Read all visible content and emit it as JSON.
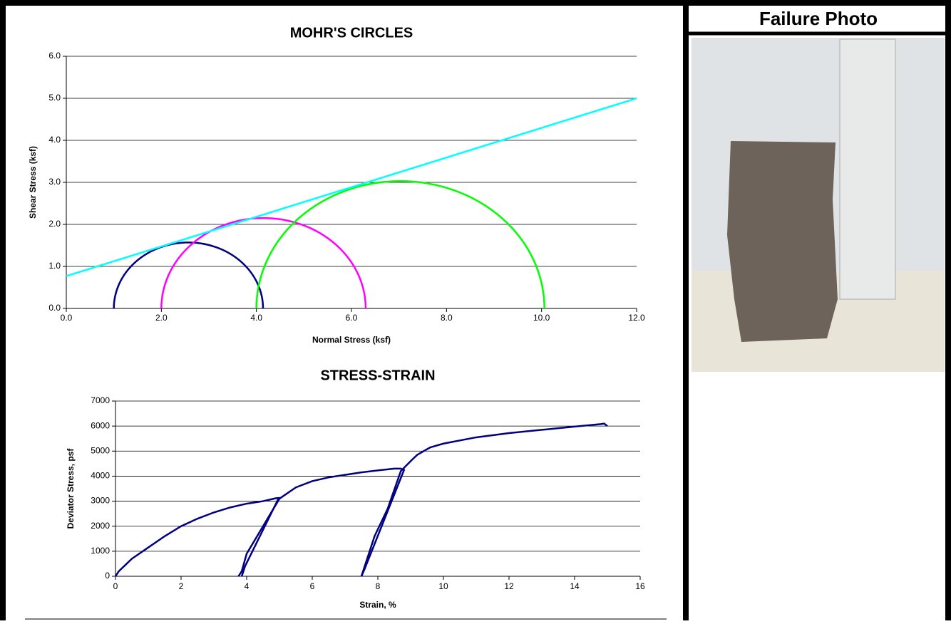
{
  "chart_data": [
    {
      "type": "mohr",
      "title": "MOHR'S CIRCLES",
      "x_label": "Normal Stress (ksf)",
      "y_label": "Shear Stress (ksf)",
      "xlim": [
        0,
        12
      ],
      "xticks": [
        {
          "value": 0,
          "label": "0.0"
        },
        {
          "value": 2,
          "label": "2.0"
        },
        {
          "value": 4,
          "label": "4.0"
        },
        {
          "value": 6,
          "label": "6.0"
        },
        {
          "value": 8,
          "label": "8.0"
        },
        {
          "value": 10,
          "label": "10.0"
        },
        {
          "value": 12,
          "label": "12.0"
        }
      ],
      "ylim": [
        0,
        6
      ],
      "yticks": [
        {
          "value": 0,
          "label": "0.0"
        },
        {
          "value": 1,
          "label": "1.0"
        },
        {
          "value": 2,
          "label": "2.0"
        },
        {
          "value": 3,
          "label": "3.0"
        },
        {
          "value": 4,
          "label": "4.0"
        },
        {
          "value": 5,
          "label": "5.0"
        },
        {
          "value": 6,
          "label": "6.0"
        }
      ],
      "grid": true,
      "circles": [
        {
          "color": "#000080",
          "center": 2.57,
          "radius": 1.57
        },
        {
          "color": "#ff00ff",
          "center": 4.15,
          "radius": 2.15
        },
        {
          "color": "#00ff00",
          "center": 7.03,
          "radius": 3.03
        }
      ],
      "envelope": {
        "color": "#00ffff",
        "x": [
          0,
          12
        ],
        "values": [
          0.77,
          5.0
        ]
      }
    },
    {
      "type": "line",
      "title": "STRESS-STRAIN",
      "x_label": "Strain, %",
      "y_label": "Deviator Stress, psf",
      "xlim": [
        0,
        16
      ],
      "xticks": [
        0,
        2,
        4,
        6,
        8,
        10,
        12,
        14,
        16
      ],
      "ylim": [
        0,
        7000
      ],
      "yticks": [
        0,
        1000,
        2000,
        3000,
        4000,
        5000,
        6000,
        7000
      ],
      "grid": true,
      "series": [
        {
          "color": "#000080",
          "x": [
            0,
            0.1,
            0.3,
            0.5,
            1,
            1.5,
            2,
            2.5,
            3,
            3.5,
            4,
            4.5,
            4.9,
            5.0,
            4.95,
            3.95,
            3.85
          ],
          "values": [
            0,
            200,
            450,
            700,
            1150,
            1600,
            2000,
            2300,
            2550,
            2750,
            2900,
            3000,
            3120,
            3130,
            3050,
            400,
            0
          ]
        },
        {
          "color": "#000080",
          "x": [
            3.75,
            3.85,
            4.0,
            4.5,
            5.0,
            5.5,
            6.0,
            6.5,
            7.0,
            7.5,
            8.0,
            8.5,
            8.7,
            8.8,
            7.6,
            7.5
          ],
          "values": [
            0,
            200,
            900,
            2000,
            3100,
            3550,
            3800,
            3950,
            4050,
            4150,
            4230,
            4300,
            4300,
            4250,
            300,
            0
          ]
        },
        {
          "color": "#000080",
          "x": [
            7.5,
            7.7,
            7.9,
            8.3,
            8.7,
            9.0,
            9.2,
            9.6,
            10,
            11,
            12,
            13,
            14,
            14.8,
            14.9,
            15
          ],
          "values": [
            0,
            800,
            1600,
            2700,
            4200,
            4600,
            4850,
            5150,
            5300,
            5550,
            5720,
            5850,
            5980,
            6080,
            6100,
            6000
          ]
        }
      ]
    }
  ],
  "photo_panel": {
    "title": "Failure Photo"
  }
}
